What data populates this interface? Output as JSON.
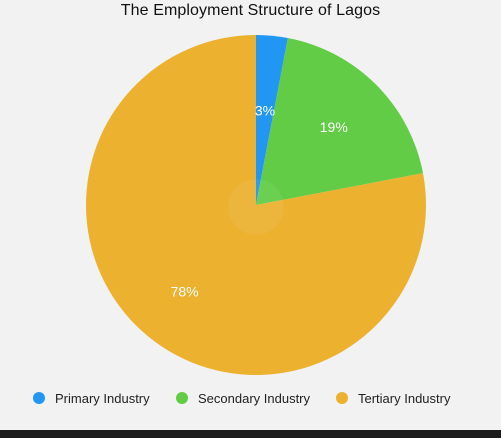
{
  "chart_data": {
    "type": "pie",
    "title": "The Employment Structure of Lagos",
    "categories": [
      "Primary Industry",
      "Secondary Industry",
      "Tertiary Industry"
    ],
    "values": [
      3,
      19,
      78
    ],
    "labels": [
      "3%",
      "19%",
      "78%"
    ],
    "colors": [
      "#2196f3",
      "#62cc47",
      "#ebb12f"
    ],
    "legend_position": "bottom"
  }
}
